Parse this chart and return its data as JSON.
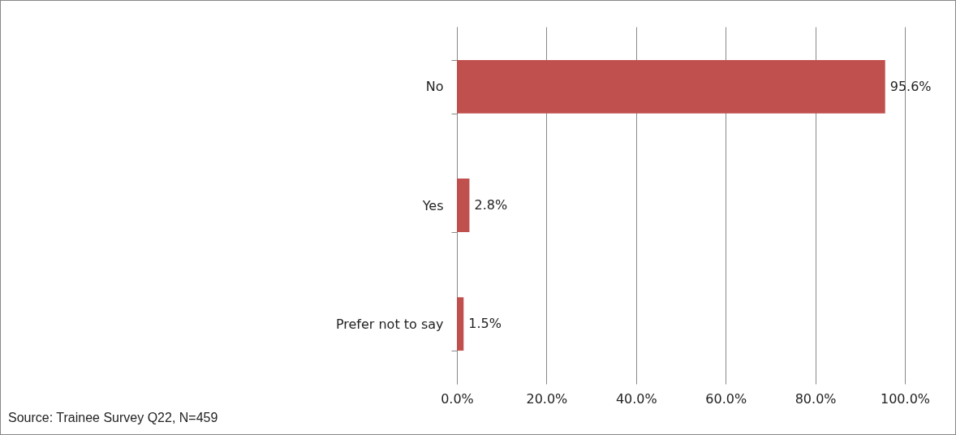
{
  "chart_data": {
    "type": "bar",
    "orientation": "horizontal",
    "categories": [
      "No",
      "Yes",
      "Prefer not to say"
    ],
    "values": [
      95.6,
      2.8,
      1.5
    ],
    "value_labels": [
      "95.6%",
      "2.8%",
      "1.5%"
    ],
    "color": "#c0504d",
    "xlim": [
      0,
      100
    ],
    "xticks": [
      {
        "value": 0,
        "label": "0.0%"
      },
      {
        "value": 20,
        "label": "20.0%"
      },
      {
        "value": 40,
        "label": "40.0%"
      },
      {
        "value": 60,
        "label": "60.0%"
      },
      {
        "value": 80,
        "label": "80.0%"
      },
      {
        "value": 100,
        "label": "100.0%"
      }
    ],
    "grid": "x",
    "annotations": [
      "Source: Trainee Survey Q22, N=459"
    ]
  }
}
